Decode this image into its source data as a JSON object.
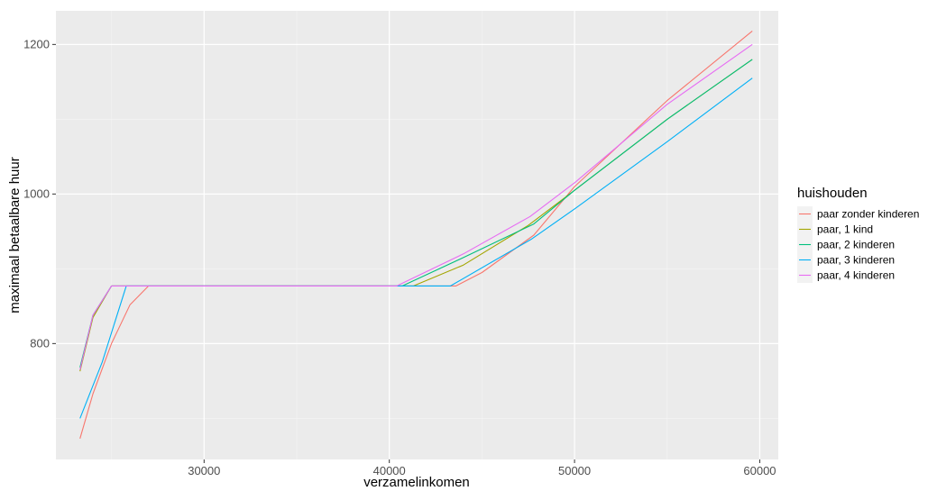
{
  "chart_data": {
    "type": "line",
    "title": "",
    "xlabel": "verzamelinkomen",
    "ylabel": "maximaal betaalbare huur",
    "xlim": [
      22000,
      61000
    ],
    "ylim": [
      645,
      1245
    ],
    "x_ticks": [
      30000,
      40000,
      50000,
      60000
    ],
    "y_ticks": [
      800,
      1000,
      1200
    ],
    "grid": true,
    "legend": {
      "title": "huishouden",
      "position": "right"
    },
    "series": [
      {
        "name": "paar zonder kinderen",
        "color": "#F8766D",
        "points": [
          [
            23300,
            673
          ],
          [
            24000,
            733
          ],
          [
            25000,
            800
          ],
          [
            26000,
            852
          ],
          [
            27000,
            877
          ],
          [
            40000,
            877
          ],
          [
            43600,
            877
          ],
          [
            45000,
            895
          ],
          [
            47800,
            945
          ],
          [
            50000,
            1010
          ],
          [
            55000,
            1125
          ],
          [
            59600,
            1218
          ]
        ]
      },
      {
        "name": "paar, 1 kind",
        "color": "#A3A500",
        "points": [
          [
            23300,
            763
          ],
          [
            24000,
            835
          ],
          [
            25000,
            877
          ],
          [
            40000,
            877
          ],
          [
            41300,
            877
          ],
          [
            44000,
            905
          ],
          [
            47500,
            958
          ],
          [
            50000,
            1005
          ],
          [
            55000,
            1100
          ],
          [
            59600,
            1180
          ]
        ]
      },
      {
        "name": "paar, 2 kinderen",
        "color": "#00BF7D",
        "points": [
          [
            23300,
            768
          ],
          [
            24000,
            838
          ],
          [
            25000,
            877
          ],
          [
            40000,
            877
          ],
          [
            40700,
            877
          ],
          [
            44000,
            915
          ],
          [
            47800,
            960
          ],
          [
            50000,
            1005
          ],
          [
            55000,
            1100
          ],
          [
            59600,
            1180
          ]
        ]
      },
      {
        "name": "paar, 3 kinderen",
        "color": "#00B0F6",
        "points": [
          [
            23300,
            700
          ],
          [
            24500,
            775
          ],
          [
            25800,
            877
          ],
          [
            40000,
            877
          ],
          [
            43300,
            877
          ],
          [
            47700,
            940
          ],
          [
            50000,
            980
          ],
          [
            55000,
            1070
          ],
          [
            59600,
            1155
          ]
        ]
      },
      {
        "name": "paar, 4 kinderen",
        "color": "#E76BF3",
        "points": [
          [
            23300,
            765
          ],
          [
            24000,
            838
          ],
          [
            25000,
            877
          ],
          [
            39500,
            877
          ],
          [
            40400,
            877
          ],
          [
            44000,
            920
          ],
          [
            47600,
            970
          ],
          [
            50000,
            1015
          ],
          [
            55000,
            1120
          ],
          [
            59600,
            1200
          ]
        ]
      }
    ]
  }
}
